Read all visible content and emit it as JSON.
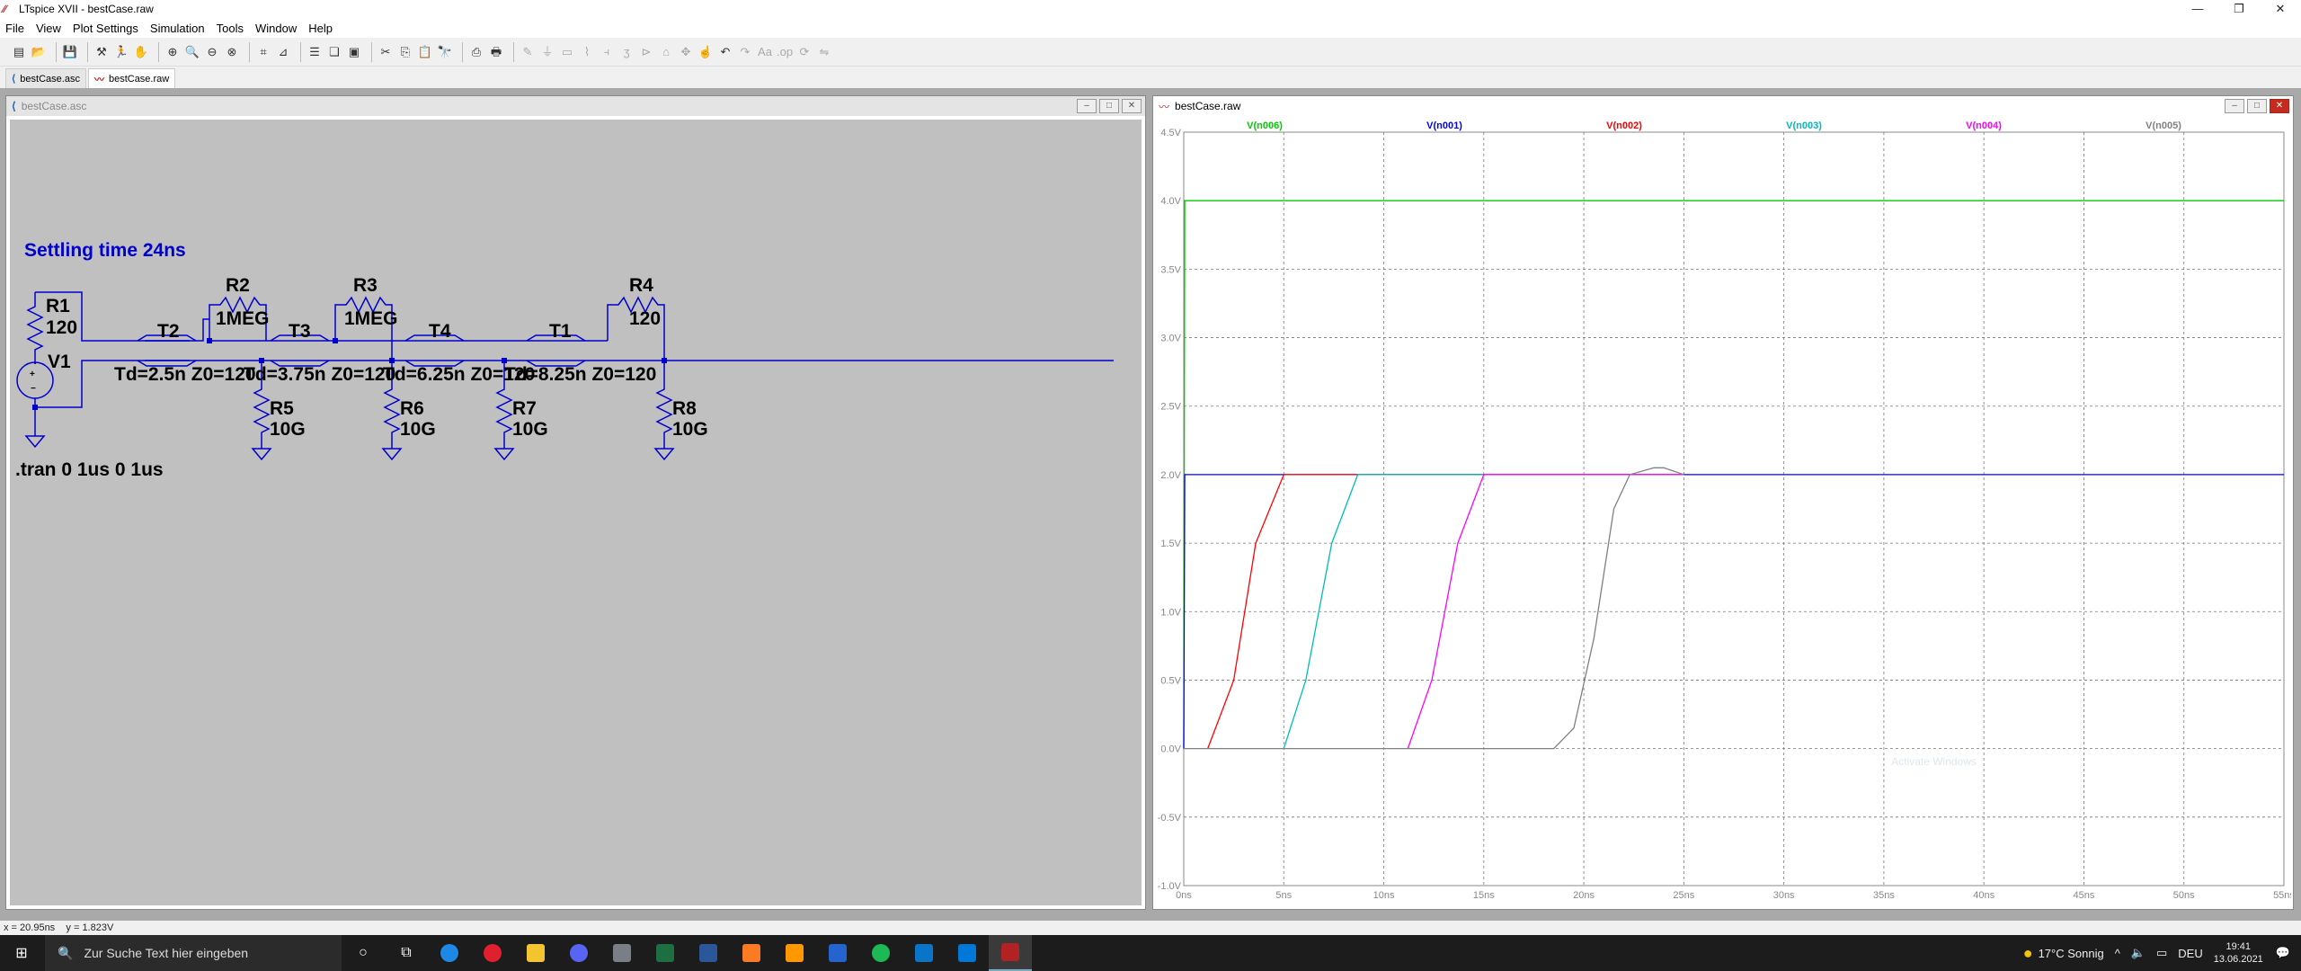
{
  "window": {
    "title": "LTspice XVII - bestCase.raw"
  },
  "menu": [
    "File",
    "View",
    "Plot Settings",
    "Simulation",
    "Tools",
    "Window",
    "Help"
  ],
  "tabs": [
    {
      "label": "bestCase.asc"
    },
    {
      "label": "bestCase.raw"
    }
  ],
  "schematic": {
    "title": "bestCase.asc",
    "annotation": "Settling time 24ns",
    "directive": ".tran 0 1us 0 1us",
    "components": [
      {
        "ref": "R1",
        "value": "120"
      },
      {
        "ref": "V1",
        "value": ""
      },
      {
        "ref": "R2",
        "value": "1MEG"
      },
      {
        "ref": "R3",
        "value": "1MEG"
      },
      {
        "ref": "R4",
        "value": "120"
      },
      {
        "ref": "T2",
        "value": "Td=2.5n Z0=120"
      },
      {
        "ref": "T3",
        "value": "Td=3.75n Z0=120"
      },
      {
        "ref": "T4",
        "value": "Td=6.25n Z0=120"
      },
      {
        "ref": "T1",
        "value": "Td=8.25n Z0=120"
      },
      {
        "ref": "R5",
        "value": "10G"
      },
      {
        "ref": "R6",
        "value": "10G"
      },
      {
        "ref": "R7",
        "value": "10G"
      },
      {
        "ref": "R8",
        "value": "10G"
      }
    ]
  },
  "plot": {
    "title": "bestCase.raw",
    "watermark": "Activate Windows"
  },
  "chart_data": {
    "type": "line",
    "title": "",
    "xlabel": "",
    "ylabel": "",
    "xlim": [
      0,
      55
    ],
    "ylim": [
      -1.0,
      4.5
    ],
    "xticks": [
      "0ns",
      "5ns",
      "10ns",
      "15ns",
      "20ns",
      "25ns",
      "30ns",
      "35ns",
      "40ns",
      "45ns",
      "50ns",
      "55ns"
    ],
    "yticks": [
      "4.5V",
      "4.0V",
      "3.5V",
      "3.0V",
      "2.5V",
      "2.0V",
      "1.5V",
      "1.0V",
      "0.5V",
      "0.0V",
      "-0.5V",
      "-1.0V"
    ],
    "series": [
      {
        "name": "V(n006)",
        "color": "#00cc00",
        "x": [
          0,
          0.05,
          55
        ],
        "y": [
          0,
          4.0,
          4.0
        ]
      },
      {
        "name": "V(n001)",
        "color": "#0000ff",
        "x": [
          0,
          0.05,
          55
        ],
        "y": [
          0,
          2.0,
          2.0
        ]
      },
      {
        "name": "V(n002)",
        "color": "#ff0000",
        "x": [
          1.2,
          2.5,
          3.6,
          5.0,
          25
        ],
        "y": [
          0,
          0.5,
          1.5,
          2.0,
          2.0
        ]
      },
      {
        "name": "V(n003)",
        "color": "#00bbbb",
        "x": [
          5.0,
          6.1,
          7.4,
          8.7,
          25
        ],
        "y": [
          0,
          0.5,
          1.5,
          2.0,
          2.0
        ]
      },
      {
        "name": "V(n004)",
        "color": "#ff00ff",
        "x": [
          11.2,
          12.4,
          13.7,
          15.0,
          25
        ],
        "y": [
          0,
          0.5,
          1.5,
          2.0,
          2.0
        ]
      },
      {
        "name": "V(n005)",
        "color": "#808080",
        "x": [
          0,
          18.5,
          19.5,
          20.5,
          21.5,
          22.3,
          23.5,
          24.0,
          25.0
        ],
        "y": [
          0,
          0,
          0.15,
          0.8,
          1.75,
          2.0,
          2.05,
          2.05,
          2.0
        ]
      }
    ]
  },
  "status": {
    "coords": "x = 20.95ns    y = 1.823V"
  },
  "taskbar": {
    "search_placeholder": "Zur Suche Text hier eingeben",
    "weather": "17°C  Sonnig",
    "lang": "DEU",
    "time": "19:41",
    "date": "13.06.2021"
  }
}
